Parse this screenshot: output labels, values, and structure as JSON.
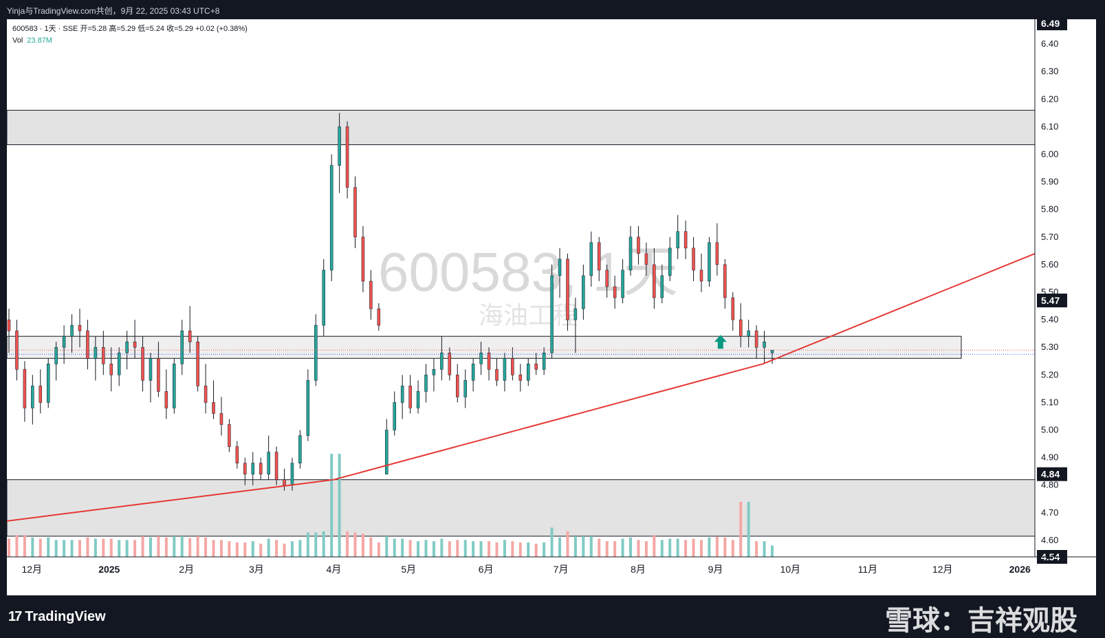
{
  "header": {
    "publisher_line": "Yinja与TradingView.com共创，9月 22, 2025 03:43 UTC+8"
  },
  "legend": {
    "line1": "600583 · 1天 · SSE 开=5.28 高=5.29 低=5.24 收=5.29 +0.02 (+0.38%)",
    "vol_label": "Vol",
    "vol_value": "23.87M"
  },
  "center_watermark": {
    "ticker": "600583, 1天",
    "name": "海油工程"
  },
  "price_badges": {
    "top": "6.49",
    "mid": "5.47",
    "zone": "4.84",
    "bottom": "4.54"
  },
  "footer": {
    "brand": "TradingView",
    "logo_glyph": "17",
    "author_watermark": "雪球：吉祥观股"
  },
  "colors": {
    "up": "#26a69a",
    "down": "#ef5350",
    "up_volume": "#80cbc4",
    "down_volume": "#f4a7a5",
    "curve": "#e53935",
    "zone_fill": "#e3e3e3",
    "arrow": "#089981"
  },
  "chart_data": {
    "type": "candlestick",
    "symbol": "600583",
    "interval": "1天",
    "exchange": "SSE",
    "ylim": [
      4.54,
      6.49
    ],
    "y_ticks": [
      "4.60",
      "4.70",
      "4.80",
      "4.90",
      "5.00",
      "5.10",
      "5.20",
      "5.30",
      "5.40",
      "5.50",
      "5.60",
      "5.70",
      "5.80",
      "5.90",
      "6.00",
      "6.10",
      "6.20",
      "6.30",
      "6.40"
    ],
    "x_ticks": [
      "12月",
      "2025",
      "2月",
      "3月",
      "4月",
      "5月",
      "6月",
      "7月",
      "8月",
      "9月",
      "10月",
      "11月",
      "12月",
      "2026"
    ],
    "x_tick_dates": [
      "2024-12-01",
      "2025-01-01",
      "2025-02-01",
      "2025-03-01",
      "2025-04-01",
      "2025-05-01",
      "2025-06-01",
      "2025-07-01",
      "2025-08-01",
      "2025-09-01",
      "2025-10-01",
      "2025-11-01",
      "2025-12-01",
      "2026-01-01"
    ],
    "x_range": [
      "2024-11-21",
      "2026-01-07"
    ],
    "last_bar": {
      "open": 5.28,
      "high": 5.29,
      "low": 5.24,
      "close": 5.29,
      "change": 0.02,
      "change_pct": 0.38,
      "volume": "23.87M"
    },
    "ohlc_approx": [
      [
        5.4,
        5.44,
        5.28,
        5.36
      ],
      [
        5.36,
        5.4,
        5.18,
        5.22
      ],
      [
        5.22,
        5.25,
        5.03,
        5.08
      ],
      [
        5.08,
        5.2,
        5.02,
        5.16
      ],
      [
        5.16,
        5.22,
        5.06,
        5.1
      ],
      [
        5.1,
        5.26,
        5.08,
        5.24
      ],
      [
        5.24,
        5.32,
        5.18,
        5.3
      ],
      [
        5.3,
        5.38,
        5.24,
        5.34
      ],
      [
        5.34,
        5.42,
        5.28,
        5.38
      ],
      [
        5.38,
        5.44,
        5.3,
        5.36
      ],
      [
        5.36,
        5.4,
        5.22,
        5.26
      ],
      [
        5.26,
        5.34,
        5.18,
        5.3
      ],
      [
        5.3,
        5.36,
        5.2,
        5.24
      ],
      [
        5.24,
        5.3,
        5.14,
        5.2
      ],
      [
        5.2,
        5.3,
        5.16,
        5.28
      ],
      [
        5.28,
        5.36,
        5.22,
        5.32
      ],
      [
        5.32,
        5.4,
        5.26,
        5.3
      ],
      [
        5.3,
        5.34,
        5.14,
        5.18
      ],
      [
        5.18,
        5.28,
        5.1,
        5.26
      ],
      [
        5.26,
        5.32,
        5.12,
        5.14
      ],
      [
        5.14,
        5.22,
        5.04,
        5.08
      ],
      [
        5.08,
        5.26,
        5.06,
        5.24
      ],
      [
        5.24,
        5.4,
        5.2,
        5.36
      ],
      [
        5.36,
        5.45,
        5.28,
        5.32
      ],
      [
        5.32,
        5.34,
        5.14,
        5.16
      ],
      [
        5.16,
        5.24,
        5.06,
        5.1
      ],
      [
        5.1,
        5.18,
        5.04,
        5.06
      ],
      [
        5.06,
        5.12,
        4.98,
        5.02
      ],
      [
        5.02,
        5.04,
        4.92,
        4.94
      ],
      [
        4.94,
        4.96,
        4.86,
        4.88
      ],
      [
        4.88,
        4.9,
        4.8,
        4.84
      ],
      [
        4.84,
        4.92,
        4.8,
        4.88
      ],
      [
        4.88,
        4.9,
        4.82,
        4.84
      ],
      [
        4.84,
        4.98,
        4.82,
        4.92
      ],
      [
        4.92,
        4.94,
        4.8,
        4.82
      ],
      [
        4.82,
        4.86,
        4.78,
        4.8
      ],
      [
        4.8,
        4.9,
        4.78,
        4.88
      ],
      [
        4.88,
        5.0,
        4.86,
        4.98
      ],
      [
        4.98,
        5.22,
        4.96,
        5.18
      ],
      [
        5.18,
        5.42,
        5.16,
        5.38
      ],
      [
        5.38,
        5.62,
        5.34,
        5.58
      ],
      [
        5.58,
        6.0,
        5.54,
        5.96
      ],
      [
        5.96,
        6.15,
        5.86,
        6.1
      ],
      [
        6.1,
        6.12,
        5.84,
        5.88
      ],
      [
        5.88,
        5.92,
        5.66,
        5.7
      ],
      [
        5.7,
        5.74,
        5.5,
        5.54
      ],
      [
        5.54,
        5.58,
        5.4,
        5.44
      ],
      [
        5.44,
        5.46,
        5.36,
        5.38
      ],
      [
        4.84,
        5.04,
        4.84,
        5.0
      ],
      [
        5.0,
        5.14,
        4.98,
        5.1
      ],
      [
        5.1,
        5.2,
        5.04,
        5.16
      ],
      [
        5.16,
        5.2,
        5.06,
        5.08
      ],
      [
        5.08,
        5.18,
        5.06,
        5.14
      ],
      [
        5.14,
        5.24,
        5.1,
        5.2
      ],
      [
        5.2,
        5.26,
        5.14,
        5.22
      ],
      [
        5.22,
        5.34,
        5.18,
        5.28
      ],
      [
        5.28,
        5.3,
        5.18,
        5.2
      ],
      [
        5.2,
        5.24,
        5.1,
        5.12
      ],
      [
        5.12,
        5.22,
        5.08,
        5.18
      ],
      [
        5.18,
        5.26,
        5.14,
        5.24
      ],
      [
        5.24,
        5.32,
        5.2,
        5.28
      ],
      [
        5.28,
        5.3,
        5.18,
        5.22
      ],
      [
        5.22,
        5.26,
        5.16,
        5.18
      ],
      [
        5.18,
        5.28,
        5.14,
        5.26
      ],
      [
        5.26,
        5.3,
        5.18,
        5.2
      ],
      [
        5.2,
        5.24,
        5.14,
        5.18
      ],
      [
        5.18,
        5.26,
        5.16,
        5.24
      ],
      [
        5.24,
        5.28,
        5.2,
        5.22
      ],
      [
        5.22,
        5.3,
        5.2,
        5.28
      ],
      [
        5.28,
        5.6,
        5.26,
        5.56
      ],
      [
        5.56,
        5.66,
        5.48,
        5.62
      ],
      [
        5.62,
        5.64,
        5.36,
        5.4
      ],
      [
        5.4,
        5.48,
        5.28,
        5.44
      ],
      [
        5.44,
        5.6,
        5.4,
        5.56
      ],
      [
        5.56,
        5.72,
        5.52,
        5.68
      ],
      [
        5.68,
        5.7,
        5.54,
        5.58
      ],
      [
        5.58,
        5.6,
        5.48,
        5.52
      ],
      [
        5.52,
        5.56,
        5.44,
        5.48
      ],
      [
        5.48,
        5.62,
        5.46,
        5.58
      ],
      [
        5.58,
        5.74,
        5.56,
        5.7
      ],
      [
        5.7,
        5.74,
        5.6,
        5.64
      ],
      [
        5.64,
        5.68,
        5.56,
        5.6
      ],
      [
        5.6,
        5.66,
        5.44,
        5.48
      ],
      [
        5.48,
        5.6,
        5.46,
        5.56
      ],
      [
        5.56,
        5.7,
        5.54,
        5.66
      ],
      [
        5.66,
        5.78,
        5.62,
        5.72
      ],
      [
        5.72,
        5.76,
        5.62,
        5.66
      ],
      [
        5.66,
        5.7,
        5.54,
        5.58
      ],
      [
        5.58,
        5.64,
        5.5,
        5.54
      ],
      [
        5.54,
        5.7,
        5.52,
        5.68
      ],
      [
        5.68,
        5.75,
        5.56,
        5.6
      ],
      [
        5.6,
        5.62,
        5.44,
        5.48
      ],
      [
        5.48,
        5.5,
        5.36,
        5.4
      ],
      [
        5.4,
        5.46,
        5.3,
        5.34
      ],
      [
        5.34,
        5.4,
        5.3,
        5.36
      ],
      [
        5.36,
        5.38,
        5.26,
        5.3
      ],
      [
        5.3,
        5.36,
        5.24,
        5.32
      ],
      [
        5.28,
        5.29,
        5.24,
        5.29
      ]
    ],
    "zones": [
      {
        "from": 6.035,
        "to": 6.16,
        "type": "resistance"
      },
      {
        "from": 5.26,
        "to": 5.34,
        "type": "support"
      },
      {
        "from": 4.615,
        "to": 4.82,
        "type": "demand"
      }
    ],
    "curve": {
      "description": "rising trend curve",
      "points": [
        [
          "2024-11-21",
          4.67
        ],
        [
          "2025-04-01",
          4.82
        ],
        [
          "2025-09-20",
          5.24
        ],
        [
          "2026-01-07",
          5.64
        ]
      ]
    },
    "marker": {
      "type": "up-arrow",
      "date": "2025-09-03",
      "price": 5.31
    },
    "volume_highlights": [
      {
        "date": "2025-03-25",
        "level": "peak"
      },
      {
        "date": "2025-09-02",
        "level": "peak"
      }
    ]
  }
}
